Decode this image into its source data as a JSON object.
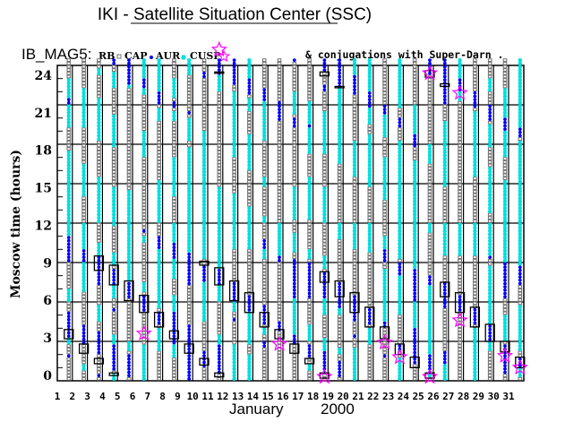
{
  "header": {
    "title": "IKI - Satellite Situation Center (SSC)",
    "satellite": "IB_MAG5:",
    "legend": [
      {
        "label": "RB",
        "symbol": "square-icon",
        "color": "#707070"
      },
      {
        "label": "CAP",
        "symbol": "dot-icon",
        "color": "#0000ff"
      },
      {
        "label": "AUR",
        "symbol": "asterisk-icon",
        "color": "#00dede"
      },
      {
        "label": "CUSP",
        "symbol": "star-icon",
        "color": "#ff00ff"
      }
    ],
    "conjugation_note": "& conjugations with Super-Darn ."
  },
  "chart_data": {
    "type": "scatter",
    "title": "IKI - Satellite Situation Center (SSC)",
    "ylabel": "Moscow time (hours)",
    "xlabel_month": "January",
    "xlabel_year": "2000",
    "ylim": [
      0,
      24
    ],
    "yticks": [
      "0",
      "3",
      "6",
      "9",
      "12",
      "15",
      "18",
      "21",
      "24"
    ],
    "days": [
      "1",
      "2",
      "3",
      "4",
      "5",
      "6",
      "7",
      "8",
      "9",
      "10",
      "11",
      "12",
      "13",
      "14",
      "15",
      "16",
      "17",
      "18",
      "19",
      "20",
      "21",
      "22",
      "23",
      "24",
      "25",
      "26",
      "27",
      "28",
      "29",
      "30",
      "31"
    ],
    "grid": true,
    "note": "Each column shows regions along orbit by Moscow time; segments list hour ranges, remainder is RB",
    "columns": [
      {
        "cap": [
          [
            21,
            21.4
          ],
          [
            9.1,
            11
          ],
          [
            3.4,
            5.3
          ],
          [
            1.9,
            2.1
          ]
        ],
        "aur": [
          [
            19.2,
            23
          ],
          [
            11,
            17.4
          ],
          [
            6,
            7
          ],
          [
            2.8,
            3.3
          ]
        ]
      },
      {
        "cap": [
          [
            9,
            9.9
          ],
          [
            2.8,
            4.2
          ]
        ],
        "aur": [
          [
            19.4,
            22.3
          ],
          [
            14,
            16.5
          ],
          [
            10.1,
            12
          ],
          [
            6.7,
            9
          ],
          [
            0.8,
            1.2
          ]
        ]
      },
      {
        "cap": [
          [
            7.4,
            9.4
          ],
          [
            2,
            3.7
          ],
          [
            0.2,
            0.6
          ]
        ],
        "aur": [
          [
            23.2,
            23.7
          ],
          [
            18.4,
            21.5
          ],
          [
            12,
            15.5
          ],
          [
            9.2,
            10.6
          ],
          [
            4.5,
            5.7
          ]
        ]
      },
      {
        "cap": [
          [
            24,
            24.5
          ],
          [
            7.4,
            8.6
          ],
          [
            5.2,
            5.4
          ],
          [
            0.7,
            2.8
          ]
        ],
        "aur": [
          [
            22.3,
            23.6
          ],
          [
            17.8,
            20.3
          ],
          [
            11.8,
            14.8
          ],
          [
            8.8,
            9.7
          ],
          [
            6.2,
            7.3
          ],
          [
            2.8,
            3.5
          ],
          [
            0.1,
            0.6
          ]
        ]
      },
      {
        "cap": [
          [
            22.6,
            24.5
          ],
          [
            6.2,
            7.5
          ],
          [
            0.4,
            2.1
          ]
        ],
        "aur": [
          [
            22.3,
            22.6
          ],
          [
            7.6,
            14.5
          ],
          [
            2.3,
            3.1
          ]
        ]
      },
      {
        "cap": [
          [
            22.3,
            23
          ],
          [
            11.2,
            11.6
          ],
          [
            5.2,
            6.6
          ]
        ],
        "aur": [
          [
            21.7,
            24.4
          ],
          [
            17,
            19
          ],
          [
            10.5,
            11
          ],
          [
            6.7,
            7.6
          ],
          [
            0,
            2.8
          ]
        ]
      },
      {
        "cap": [
          [
            21,
            21.9
          ],
          [
            10,
            11.1
          ],
          [
            4.2,
            5.2
          ]
        ],
        "aur": [
          [
            22,
            24.5
          ],
          [
            19.8,
            20.8
          ],
          [
            12,
            15.3
          ],
          [
            5.5,
            10
          ],
          [
            2.4,
            3.9
          ]
        ]
      },
      {
        "cap": [
          [
            20.7,
            21.2
          ],
          [
            9.2,
            10.6
          ],
          [
            2.8,
            5.2
          ]
        ],
        "aur": [
          [
            21.5,
            23
          ],
          [
            19.8,
            20.5
          ],
          [
            14,
            17.1
          ],
          [
            10.6,
            12
          ],
          [
            7.7,
            9.2
          ],
          [
            5.2,
            6.5
          ],
          [
            1.9,
            2.8
          ]
        ]
      },
      {
        "cap": [
          [
            20.2,
            20.6
          ],
          [
            7.4,
            9.7
          ],
          [
            0.1,
            4.2
          ]
        ],
        "aur": [
          [
            23.3,
            24.5
          ],
          [
            18.3,
            20.1
          ],
          [
            9.7,
            17.7
          ]
        ]
      },
      {
        "cap": [
          [
            23,
            23.4
          ],
          [
            7.6,
            8.8
          ],
          [
            1,
            2.2
          ]
        ],
        "aur": [
          [
            12,
            19.1
          ],
          [
            9.2,
            12
          ],
          [
            4.6,
            7.6
          ]
        ]
      },
      {
        "cap": [
          [
            23.3,
            24.5
          ],
          [
            7.3,
            8.5
          ],
          [
            0.6,
            2.8
          ]
        ],
        "aur": [
          [
            22.1,
            23.3
          ],
          [
            8.6,
            14.8
          ],
          [
            6,
            7.3
          ],
          [
            2.9,
            3.4
          ]
        ]
      },
      {
        "cap": [
          [
            22.6,
            24.5
          ],
          [
            6.1,
            7.6
          ],
          [
            4.5,
            4.7
          ]
        ],
        "aur": [
          [
            17,
            21.9
          ],
          [
            10.1,
            14.2
          ],
          [
            5.2,
            6.1
          ],
          [
            0.1,
            2.8
          ]
        ]
      },
      {
        "cap": [
          [
            21.7,
            23.1
          ],
          [
            5.2,
            6.6
          ]
        ],
        "aur": [
          [
            23.1,
            24.5
          ],
          [
            20.5,
            21.5
          ],
          [
            16.1,
            18.8
          ],
          [
            10.1,
            13.2
          ],
          [
            2.8,
            5.2
          ],
          [
            0.1,
            1.9
          ]
        ]
      },
      {
        "cap": [
          [
            21.2,
            22.2
          ],
          [
            10.1,
            10.8
          ],
          [
            4.2,
            5.8
          ],
          [
            2.6,
            2.9
          ]
        ],
        "aur": [
          [
            18.2,
            21.2
          ],
          [
            14.8,
            15.6
          ],
          [
            12,
            12.5
          ],
          [
            9.4,
            10.1
          ],
          [
            3.5,
            4.1
          ]
        ]
      },
      {
        "cap": [
          [
            19.9,
            21.2
          ],
          [
            9,
            9.4
          ],
          [
            3.9,
            4.5
          ]
        ],
        "aur": [
          [
            9.4,
            12
          ]
        ]
      },
      {
        "cap": [
          [
            24.2,
            24.5
          ],
          [
            19.4,
            20.1
          ],
          [
            6.3,
            9.3
          ],
          [
            2.8,
            3.5
          ]
        ],
        "aur": [
          [
            20.4,
            22
          ],
          [
            12.2,
            14.7
          ],
          [
            9.9,
            11.3
          ],
          [
            3.5,
            6.2
          ]
        ]
      },
      {
        "cap": [
          [
            19.2,
            19.6
          ],
          [
            6.2,
            9
          ],
          [
            1.7,
            2.8
          ]
        ],
        "aur": [
          [
            17.4,
            21.2
          ],
          [
            12.4,
            15.6
          ],
          [
            9.2,
            10.1
          ],
          [
            3,
            4.2
          ],
          [
            0.9,
            1.3
          ]
        ]
      },
      {
        "cap": [
          [
            23.6,
            24.4
          ],
          [
            22.1,
            22.5
          ],
          [
            6.2,
            8.3
          ],
          [
            0.6,
            2.2
          ]
        ],
        "aur": [
          [
            17.4,
            20.5
          ],
          [
            12,
            14.8
          ],
          [
            8.5,
            9.6
          ],
          [
            5.1,
            6.2
          ],
          [
            2.2,
            3.3
          ]
        ]
      },
      {
        "cap": [
          [
            22.4,
            24.4
          ],
          [
            5.6,
            7.5
          ],
          [
            0.4,
            1.5
          ]
        ],
        "aur": [
          [
            16.5,
            22.3
          ],
          [
            10.8,
            12
          ],
          [
            5.1,
            5.6
          ],
          [
            2.1,
            2.6
          ]
        ]
      },
      {
        "cap": [
          [
            21.7,
            23.3
          ],
          [
            4.5,
            6.6
          ],
          [
            3.2,
            3.4
          ]
        ],
        "aur": [
          [
            23.3,
            24.4
          ],
          [
            15.6,
            18.3
          ],
          [
            10.1,
            12
          ],
          [
            0.1,
            2.4
          ]
        ]
      },
      {
        "cap": [
          [
            20.7,
            21.9
          ],
          [
            4.2,
            5.4
          ]
        ],
        "aur": [
          [
            21.9,
            24.4
          ],
          [
            19.5,
            20.7
          ],
          [
            14.7,
            18.8
          ],
          [
            9.7,
            12
          ],
          [
            2.8,
            4.1
          ]
        ]
      },
      {
        "cap": [
          [
            20.2,
            21.1
          ],
          [
            9.1,
            10
          ],
          [
            4,
            4.6
          ],
          [
            1.9,
            2.1
          ]
        ],
        "aur": [
          [
            18.6,
            20.2
          ],
          [
            13.9,
            16.9
          ],
          [
            10,
            11
          ],
          [
            4.6,
            8.6
          ]
        ]
      },
      {
        "cap": [
          [
            19.3,
            20.1
          ],
          [
            8,
            9.1
          ],
          [
            2.2,
            2.8
          ]
        ],
        "aur": [
          [
            20.8,
            24.4
          ],
          [
            12,
            18.3
          ],
          [
            9.4,
            12
          ],
          [
            5.1,
            8
          ],
          [
            0.1,
            1.8
          ]
        ]
      },
      {
        "cap": [
          [
            17.9,
            18.8
          ],
          [
            6.1,
            8.5
          ],
          [
            1.2,
            3.9
          ]
        ],
        "aur": [
          [
            18.8,
            21.1
          ],
          [
            16.1,
            16.7
          ],
          [
            8.5,
            16.1
          ],
          [
            3.9,
            5.9
          ]
        ]
      },
      {
        "cap": [
          [
            23.4,
            24.4
          ],
          [
            7.2,
            8
          ],
          [
            0.6,
            2
          ]
        ],
        "aur": [
          [
            16.5,
            17.9
          ],
          [
            11.2,
            12
          ],
          [
            2,
            7.2
          ],
          [
            0.2,
            0.4
          ]
        ]
      },
      {
        "cap": [
          [
            21.1,
            24.4
          ],
          [
            5.6,
            7.5
          ],
          [
            1.3,
            2.3
          ]
        ],
        "aur": [
          [
            14.8,
            19.8
          ],
          [
            9.6,
            12
          ],
          [
            0.1,
            1.3
          ]
        ]
      },
      {
        "cap": [
          [
            22,
            23.1
          ],
          [
            5.4,
            6.6
          ]
        ],
        "aur": [
          [
            23.1,
            24.4
          ],
          [
            21.2,
            22
          ],
          [
            9.6,
            12
          ]
        ]
      },
      {
        "cap": [
          [
            20.8,
            22
          ],
          [
            4.2,
            5.5
          ]
        ],
        "aur": [
          [
            15.6,
            20.6
          ],
          [
            9.6,
            12
          ],
          [
            0.1,
            4.1
          ]
        ]
      },
      {
        "cap": [
          [
            19.8,
            21.1
          ],
          [
            9.2,
            9.6
          ],
          [
            3,
            4.3
          ]
        ],
        "aur": [
          [
            22.1,
            23.1
          ],
          [
            17.9,
            19.5
          ],
          [
            12.8,
            16.2
          ],
          [
            9.6,
            12
          ],
          [
            4.4,
            8.8
          ],
          [
            2.4,
            3
          ]
        ]
      },
      {
        "cap": [
          [
            19,
            20
          ],
          [
            6.2,
            9
          ],
          [
            0.5,
            2.8
          ]
        ],
        "aur": [
          [
            20,
            22.3
          ],
          [
            17,
            19
          ],
          [
            12,
            15.3
          ],
          [
            9,
            12
          ],
          [
            3,
            5.1
          ]
        ]
      },
      {
        "cap": [
          [
            18.5,
            19.2
          ],
          [
            7.4,
            8.8
          ],
          [
            1,
            1.8
          ]
        ],
        "aur": [
          [
            19.2,
            24.4
          ],
          [
            12,
            18.3
          ],
          [
            8.8,
            12
          ],
          [
            2.3,
            5.7
          ],
          [
            0.2,
            0.9
          ]
        ]
      }
    ],
    "conjugation_boxes": [
      [
        1,
        3.2,
        3.9
      ],
      [
        2,
        2.1,
        2.8
      ],
      [
        3,
        8.4,
        9.5
      ],
      [
        3,
        1.3,
        1.7
      ],
      [
        4,
        7.3,
        8.8
      ],
      [
        4,
        0.4,
        0.6
      ],
      [
        5,
        6.1,
        7.6
      ],
      [
        6,
        5.2,
        6.5
      ],
      [
        7,
        4.1,
        5.2
      ],
      [
        8,
        3.2,
        3.8
      ],
      [
        9,
        2.1,
        2.8
      ],
      [
        10,
        8.8,
        9.1
      ],
      [
        10,
        1.2,
        1.7
      ],
      [
        11,
        7.3,
        8.6
      ],
      [
        11,
        0.3,
        0.6
      ],
      [
        11,
        23.4,
        23.5
      ],
      [
        12,
        6.1,
        7.6
      ],
      [
        13,
        5.2,
        6.7
      ],
      [
        14,
        4.1,
        5.2
      ],
      [
        15,
        3.2,
        3.9
      ],
      [
        16,
        2.1,
        2.8
      ],
      [
        17,
        1.3,
        1.7
      ],
      [
        18,
        23.2,
        23.5
      ],
      [
        18,
        7.5,
        8.3
      ],
      [
        18,
        0.2,
        0.6
      ],
      [
        19,
        6.4,
        7.6
      ],
      [
        19,
        22.3,
        22.4
      ],
      [
        20,
        5.2,
        6.7
      ],
      [
        21,
        4.1,
        5.6
      ],
      [
        22,
        3.2,
        4.1
      ],
      [
        23,
        2,
        2.8
      ],
      [
        24,
        1,
        1.8
      ],
      [
        25,
        23.1,
        23.6
      ],
      [
        25,
        0.2,
        0.6
      ],
      [
        26,
        22.4,
        22.6
      ],
      [
        26,
        6.4,
        7.5
      ],
      [
        27,
        5.2,
        6.7
      ],
      [
        28,
        4.1,
        5.6
      ],
      [
        29,
        3,
        4.3
      ],
      [
        30,
        2.2,
        3
      ],
      [
        31,
        1,
        1.8
      ]
    ],
    "cusp_stars": [
      [
        6,
        3.6
      ],
      [
        11,
        25.2
      ],
      [
        15,
        2.8
      ],
      [
        18,
        0.3
      ],
      [
        22,
        2.9
      ],
      [
        23,
        1.8
      ],
      [
        25,
        23.4
      ],
      [
        25,
        0.3
      ],
      [
        27,
        21.9
      ],
      [
        27,
        4.6
      ],
      [
        30,
        1.9
      ],
      [
        31,
        1.0
      ]
    ]
  }
}
